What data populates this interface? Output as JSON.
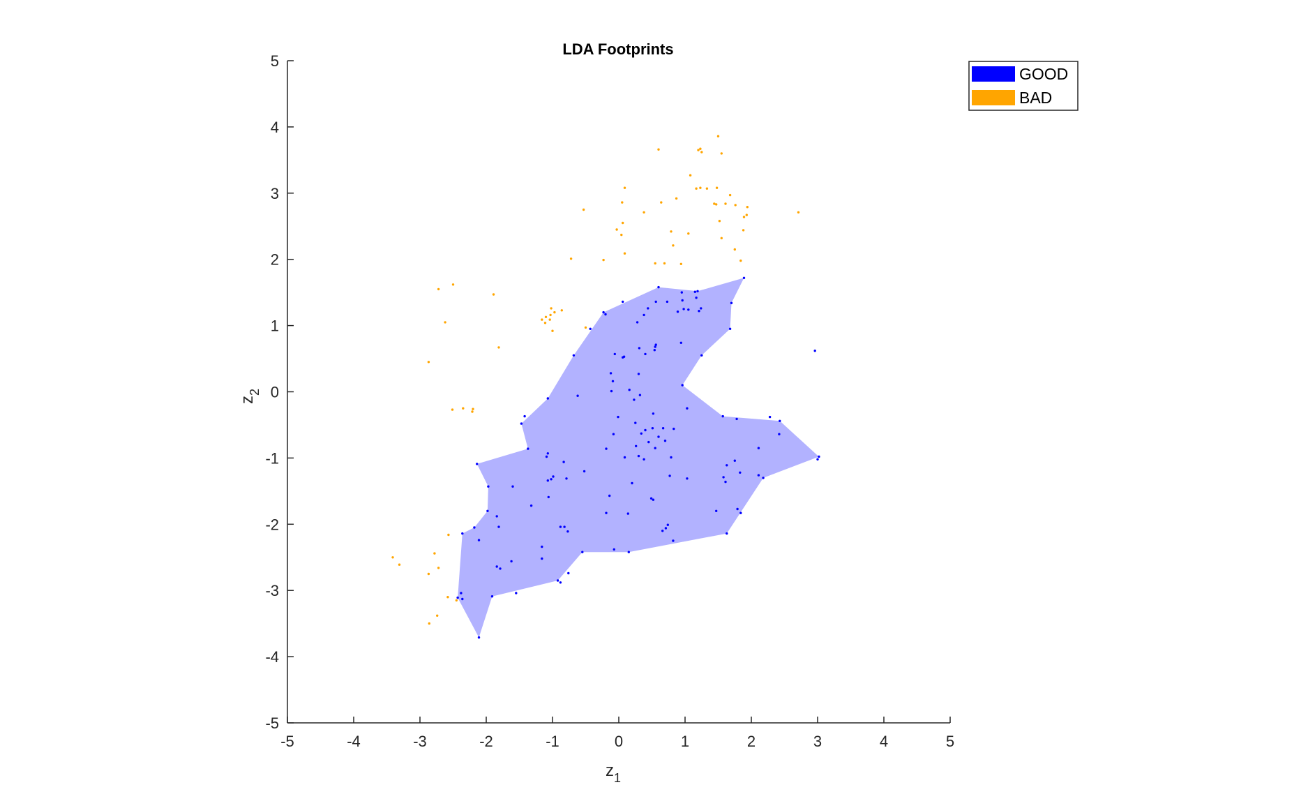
{
  "chart_data": {
    "type": "scatter",
    "title": "LDA Footprints",
    "xlabel_main": "z",
    "xlabel_sub": "1",
    "ylabel_main": "z",
    "ylabel_sub": "2",
    "xlim": [
      -5,
      5
    ],
    "ylim": [
      -5,
      5
    ],
    "xticks": [
      -5,
      -4,
      -3,
      -2,
      -1,
      0,
      1,
      2,
      3,
      4,
      5
    ],
    "yticks": [
      -5,
      -4,
      -3,
      -2,
      -1,
      0,
      1,
      2,
      3,
      4,
      5
    ],
    "grid": false,
    "legend_position": "top-right",
    "legend": [
      {
        "name": "GOOD",
        "color": "#0000ff"
      },
      {
        "name": "BAD",
        "color": "#ffa500"
      }
    ],
    "footprint": {
      "series": "GOOD",
      "fill_color": "#b2b2ff",
      "polygon": [
        [
          -2.14,
          -1.09
        ],
        [
          -1.37,
          -0.86
        ],
        [
          -1.47,
          -0.48
        ],
        [
          -1.07,
          -0.1
        ],
        [
          -0.68,
          0.55
        ],
        [
          -0.23,
          1.2
        ],
        [
          0.6,
          1.58
        ],
        [
          1.19,
          1.52
        ],
        [
          1.89,
          1.72
        ],
        [
          1.7,
          1.34
        ],
        [
          1.68,
          0.95
        ],
        [
          1.25,
          0.55
        ],
        [
          0.96,
          0.1
        ],
        [
          1.57,
          -0.37
        ],
        [
          2.43,
          -0.44
        ],
        [
          3.02,
          -0.98
        ],
        [
          2.18,
          -1.3
        ],
        [
          1.63,
          -2.14
        ],
        [
          0.15,
          -2.42
        ],
        [
          -0.55,
          -2.42
        ],
        [
          -0.92,
          -2.85
        ],
        [
          -1.91,
          -3.09
        ],
        [
          -2.11,
          -3.71
        ],
        [
          -2.43,
          -3.11
        ],
        [
          -2.36,
          -2.14
        ],
        [
          -2.18,
          -2.05
        ],
        [
          -1.98,
          -1.8
        ],
        [
          -1.97,
          -1.43
        ]
      ]
    },
    "series": [
      {
        "name": "GOOD",
        "color": "#0000ff",
        "points": [
          [
            -2.14,
            -1.09
          ],
          [
            -1.37,
            -0.86
          ],
          [
            -1.47,
            -0.48
          ],
          [
            -1.42,
            -0.37
          ],
          [
            -1.07,
            -0.1
          ],
          [
            -0.68,
            0.55
          ],
          [
            -0.23,
            1.2
          ],
          [
            0.6,
            1.58
          ],
          [
            1.19,
            1.52
          ],
          [
            1.89,
            1.72
          ],
          [
            1.7,
            1.34
          ],
          [
            1.68,
            0.95
          ],
          [
            1.25,
            0.55
          ],
          [
            0.96,
            0.1
          ],
          [
            1.57,
            -0.37
          ],
          [
            1.78,
            -0.41
          ],
          [
            2.28,
            -0.38
          ],
          [
            2.43,
            -0.44
          ],
          [
            2.42,
            -0.64
          ],
          [
            2.11,
            -0.85
          ],
          [
            3.02,
            -0.98
          ],
          [
            3.0,
            -1.02
          ],
          [
            2.11,
            -1.26
          ],
          [
            2.18,
            -1.3
          ],
          [
            1.83,
            -1.22
          ],
          [
            1.58,
            -1.29
          ],
          [
            1.61,
            -1.36
          ],
          [
            1.75,
            -1.04
          ],
          [
            1.63,
            -1.11
          ],
          [
            1.79,
            -1.77
          ],
          [
            1.84,
            -1.83
          ],
          [
            1.47,
            -1.8
          ],
          [
            1.63,
            -2.14
          ],
          [
            0.82,
            -2.25
          ],
          [
            0.66,
            -2.1
          ],
          [
            0.71,
            -2.06
          ],
          [
            0.74,
            -2.01
          ],
          [
            0.49,
            -1.61
          ],
          [
            0.15,
            -2.42
          ],
          [
            -0.07,
            -2.38
          ],
          [
            -0.55,
            -2.42
          ],
          [
            -0.76,
            -2.74
          ],
          [
            -0.92,
            -2.85
          ],
          [
            -0.88,
            -2.88
          ],
          [
            -1.16,
            -2.52
          ],
          [
            -1.55,
            -3.04
          ],
          [
            -1.91,
            -3.09
          ],
          [
            -2.11,
            -3.71
          ],
          [
            -2.43,
            -3.11
          ],
          [
            -2.38,
            -3.04
          ],
          [
            -2.36,
            -3.13
          ],
          [
            -2.36,
            -2.14
          ],
          [
            -2.18,
            -2.05
          ],
          [
            -2.11,
            -2.24
          ],
          [
            -1.98,
            -1.8
          ],
          [
            -1.84,
            -1.88
          ],
          [
            -1.81,
            -2.04
          ],
          [
            -1.84,
            -2.64
          ],
          [
            -1.79,
            -2.67
          ],
          [
            -1.62,
            -2.56
          ],
          [
            -1.97,
            -1.43
          ],
          [
            -1.6,
            -1.43
          ],
          [
            -1.32,
            -1.72
          ],
          [
            -1.06,
            -1.59
          ],
          [
            -1.02,
            -1.32
          ],
          [
            -0.99,
            -1.28
          ],
          [
            -1.07,
            -1.34
          ],
          [
            -1.09,
            -0.98
          ],
          [
            -1.07,
            -0.93
          ],
          [
            -0.83,
            -1.06
          ],
          [
            -0.79,
            -1.31
          ],
          [
            -0.52,
            -1.2
          ],
          [
            -0.77,
            -2.11
          ],
          [
            -0.82,
            -2.04
          ],
          [
            -0.88,
            -2.04
          ],
          [
            -1.16,
            -2.34
          ],
          [
            -0.19,
            -1.83
          ],
          [
            -0.14,
            -1.57
          ],
          [
            0.14,
            -1.84
          ],
          [
            0.2,
            -1.38
          ],
          [
            0.09,
            -0.99
          ],
          [
            0.3,
            -0.97
          ],
          [
            0.38,
            -1.02
          ],
          [
            0.52,
            -1.63
          ],
          [
            0.77,
            -1.27
          ],
          [
            1.03,
            -1.31
          ],
          [
            0.79,
            -0.99
          ],
          [
            0.83,
            -0.56
          ],
          [
            0.67,
            -0.55
          ],
          [
            1.03,
            -0.25
          ],
          [
            -0.19,
            -0.86
          ],
          [
            -0.08,
            -0.64
          ],
          [
            -0.01,
            -0.38
          ],
          [
            0.25,
            -0.47
          ],
          [
            0.34,
            -0.63
          ],
          [
            0.45,
            -0.76
          ],
          [
            0.51,
            -0.55
          ],
          [
            0.6,
            -0.68
          ],
          [
            0.55,
            -0.85
          ],
          [
            0.7,
            -0.74
          ],
          [
            0.26,
            -0.82
          ],
          [
            0.4,
            -0.58
          ],
          [
            0.52,
            -0.33
          ],
          [
            0.16,
            0.03
          ],
          [
            0.23,
            -0.12
          ],
          [
            0.32,
            -0.05
          ],
          [
            -0.62,
            -0.06
          ],
          [
            -0.11,
            0.01
          ],
          [
            -0.09,
            0.16
          ],
          [
            -0.12,
            0.28
          ],
          [
            0.3,
            0.27
          ],
          [
            0.4,
            0.57
          ],
          [
            0.08,
            0.53
          ],
          [
            -0.06,
            0.57
          ],
          [
            0.06,
            0.52
          ],
          [
            0.54,
            0.63
          ],
          [
            0.55,
            0.68
          ],
          [
            0.31,
            0.66
          ],
          [
            0.56,
            0.71
          ],
          [
            -0.43,
            0.95
          ],
          [
            0.28,
            1.05
          ],
          [
            0.38,
            1.16
          ],
          [
            0.44,
            1.26
          ],
          [
            0.56,
            1.36
          ],
          [
            0.06,
            1.36
          ],
          [
            0.73,
            1.36
          ],
          [
            0.89,
            1.21
          ],
          [
            0.98,
            1.25
          ],
          [
            1.05,
            1.24
          ],
          [
            1.17,
            1.42
          ],
          [
            1.15,
            1.51
          ],
          [
            0.95,
            1.5
          ],
          [
            0.96,
            1.38
          ],
          [
            1.21,
            1.22
          ],
          [
            1.24,
            1.26
          ],
          [
            0.94,
            0.74
          ],
          [
            -0.2,
            1.17
          ],
          [
            2.96,
            0.62
          ]
        ]
      },
      {
        "name": "BAD",
        "color": "#ffa500",
        "points": [
          [
            1.5,
            3.86
          ],
          [
            1.25,
            3.62
          ],
          [
            1.23,
            3.67
          ],
          [
            1.2,
            3.65
          ],
          [
            1.55,
            3.6
          ],
          [
            0.6,
            3.66
          ],
          [
            1.33,
            3.07
          ],
          [
            1.17,
            3.07
          ],
          [
            1.23,
            3.08
          ],
          [
            1.48,
            3.08
          ],
          [
            1.44,
            2.84
          ],
          [
            1.47,
            2.83
          ],
          [
            1.61,
            2.84
          ],
          [
            1.68,
            2.97
          ],
          [
            1.08,
            3.27
          ],
          [
            0.87,
            2.92
          ],
          [
            1.76,
            2.82
          ],
          [
            1.94,
            2.79
          ],
          [
            1.93,
            2.67
          ],
          [
            1.89,
            2.64
          ],
          [
            1.88,
            2.44
          ],
          [
            1.55,
            2.32
          ],
          [
            1.75,
            2.15
          ],
          [
            1.84,
            1.98
          ],
          [
            1.52,
            2.58
          ],
          [
            1.05,
            2.39
          ],
          [
            0.82,
            2.21
          ],
          [
            0.94,
            1.93
          ],
          [
            0.69,
            1.94
          ],
          [
            0.55,
            1.94
          ],
          [
            0.79,
            2.42
          ],
          [
            0.64,
            2.86
          ],
          [
            0.38,
            2.71
          ],
          [
            0.05,
            2.86
          ],
          [
            0.09,
            3.08
          ],
          [
            0.06,
            2.55
          ],
          [
            -0.03,
            2.45
          ],
          [
            0.04,
            2.37
          ],
          [
            0.09,
            2.09
          ],
          [
            -0.23,
            1.99
          ],
          [
            -0.53,
            2.75
          ],
          [
            -0.72,
            2.01
          ],
          [
            2.71,
            2.71
          ],
          [
            -0.5,
            0.97
          ],
          [
            -0.97,
            1.2
          ],
          [
            -1.02,
            1.26
          ],
          [
            -0.86,
            1.23
          ],
          [
            -1.03,
            1.16
          ],
          [
            -1.1,
            1.13
          ],
          [
            -1.16,
            1.09
          ],
          [
            -1.04,
            1.09
          ],
          [
            -1.11,
            1.04
          ],
          [
            -1.0,
            0.92
          ],
          [
            -1.89,
            1.47
          ],
          [
            -2.5,
            1.62
          ],
          [
            -2.72,
            1.55
          ],
          [
            -2.62,
            1.05
          ],
          [
            -1.81,
            0.67
          ],
          [
            -2.87,
            0.45
          ],
          [
            -2.51,
            -0.27
          ],
          [
            -2.35,
            -0.25
          ],
          [
            -2.2,
            -0.26
          ],
          [
            -2.21,
            -0.3
          ],
          [
            -2.57,
            -2.16
          ],
          [
            -2.78,
            -2.44
          ],
          [
            -2.87,
            -2.75
          ],
          [
            -2.72,
            -2.66
          ],
          [
            -3.41,
            -2.5
          ],
          [
            -3.31,
            -2.61
          ],
          [
            -2.58,
            -3.1
          ],
          [
            -2.74,
            -3.38
          ],
          [
            -2.86,
            -3.5
          ],
          [
            -2.45,
            -3.15
          ]
        ]
      }
    ]
  }
}
